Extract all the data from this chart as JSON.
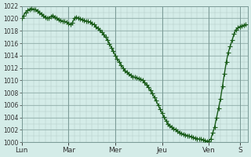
{
  "bg_color": "#d4ece8",
  "line_color": "#1a5c1a",
  "marker": "+",
  "marker_size": 4,
  "line_width": 1.0,
  "ylim": [
    1000,
    1022
  ],
  "yticks": [
    1000,
    1002,
    1004,
    1006,
    1008,
    1010,
    1012,
    1014,
    1016,
    1018,
    1020,
    1022
  ],
  "day_labels": [
    "Lun",
    "Mar",
    "Mer",
    "Jeu",
    "Ven",
    "S"
  ],
  "day_positions": [
    0,
    24,
    48,
    72,
    96,
    112
  ],
  "grid_color": "#b0c8c4",
  "dark_grid_color": "#7a9a96",
  "tick_color": "#333333",
  "x_values": [
    0,
    1,
    2,
    3,
    4,
    5,
    6,
    7,
    8,
    9,
    10,
    11,
    12,
    13,
    14,
    15,
    16,
    17,
    18,
    19,
    20,
    21,
    22,
    23,
    24,
    25,
    26,
    27,
    28,
    29,
    30,
    31,
    32,
    33,
    34,
    35,
    36,
    37,
    38,
    39,
    40,
    41,
    42,
    43,
    44,
    45,
    46,
    47,
    48,
    49,
    50,
    51,
    52,
    53,
    54,
    55,
    56,
    57,
    58,
    59,
    60,
    61,
    62,
    63,
    64,
    65,
    66,
    67,
    68,
    69,
    70,
    71,
    72,
    73,
    74,
    75,
    76,
    77,
    78,
    79,
    80,
    81,
    82,
    83,
    84,
    85,
    86,
    87,
    88,
    89,
    90,
    91,
    92,
    93,
    94,
    95,
    96,
    97,
    98,
    99,
    100,
    101,
    102,
    103,
    104,
    105,
    106,
    107,
    108,
    109,
    110,
    111,
    112,
    113,
    114,
    115
  ],
  "y_values": [
    1020.0,
    1020.5,
    1021.0,
    1021.3,
    1021.5,
    1021.6,
    1021.5,
    1021.4,
    1021.2,
    1021.0,
    1020.7,
    1020.5,
    1020.2,
    1020.0,
    1020.1,
    1020.3,
    1020.5,
    1020.2,
    1020.0,
    1019.8,
    1019.7,
    1019.5,
    1019.5,
    1019.4,
    1019.2,
    1019.0,
    1019.3,
    1020.0,
    1020.2,
    1020.1,
    1019.9,
    1019.8,
    1019.7,
    1019.6,
    1019.5,
    1019.4,
    1019.2,
    1019.0,
    1018.7,
    1018.4,
    1018.1,
    1017.8,
    1017.4,
    1017.0,
    1016.5,
    1015.9,
    1015.3,
    1014.7,
    1014.0,
    1013.5,
    1013.0,
    1012.5,
    1012.0,
    1011.6,
    1011.3,
    1011.0,
    1010.8,
    1010.6,
    1010.5,
    1010.4,
    1010.3,
    1010.2,
    1010.0,
    1009.7,
    1009.3,
    1008.9,
    1008.4,
    1007.9,
    1007.3,
    1006.7,
    1006.0,
    1005.4,
    1004.7,
    1004.1,
    1003.5,
    1003.0,
    1002.7,
    1002.4,
    1002.2,
    1002.0,
    1001.8,
    1001.6,
    1001.4,
    1001.3,
    1001.2,
    1001.1,
    1001.0,
    1000.9,
    1000.8,
    1000.7,
    1000.6,
    1000.5,
    1000.5,
    1000.4,
    1000.3,
    1000.2,
    1000.2,
    1000.5,
    1001.5,
    1002.5,
    1004.0,
    1005.5,
    1007.0,
    1009.0,
    1011.0,
    1013.0,
    1014.5,
    1015.5,
    1016.5,
    1017.5,
    1018.2,
    1018.5,
    1018.7,
    1018.8,
    1018.9,
    1019.0
  ]
}
